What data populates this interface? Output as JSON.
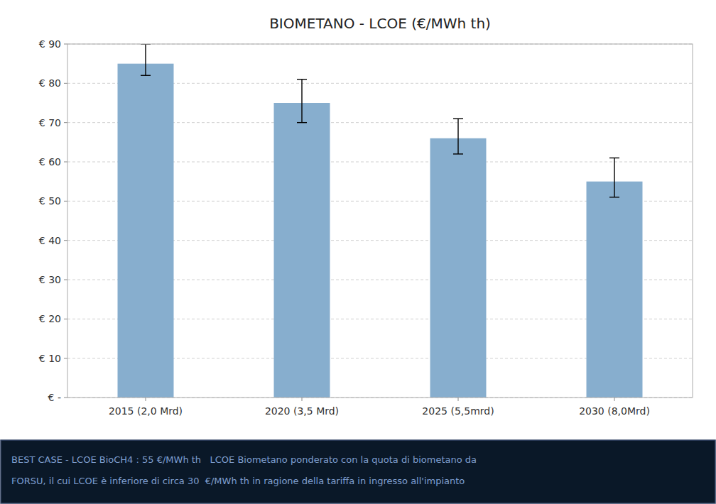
{
  "chart_data": {
    "type": "bar",
    "title": "BIOMETANO - LCOE (€/MWh th)",
    "categories": [
      "2015 (2,0 Mrd)",
      "2020 (3,5 Mrd)",
      "2025 (5,5mrd)",
      "2030 (8,0Mrd)"
    ],
    "values": [
      85,
      75,
      66,
      55
    ],
    "errors_upper": [
      5,
      6,
      5,
      6
    ],
    "errors_lower": [
      3,
      5,
      4,
      4
    ],
    "color": "#87AECE",
    "ylim": [
      0,
      90
    ],
    "yticks": [
      {
        "value": 0,
        "label": "€ -"
      },
      {
        "value": 10,
        "label": "€ 10"
      },
      {
        "value": 20,
        "label": "€ 20"
      },
      {
        "value": 30,
        "label": "€ 30"
      },
      {
        "value": 40,
        "label": "€ 40"
      },
      {
        "value": 50,
        "label": "€ 50"
      },
      {
        "value": 60,
        "label": "€ 60"
      },
      {
        "value": 70,
        "label": "€ 70"
      },
      {
        "value": 80,
        "label": "€ 80"
      },
      {
        "value": 90,
        "label": "€ 90"
      }
    ],
    "grid": true,
    "annotations": [
      "BEST CASE - LCOE BioCH4 : 55 €/MWh th   LCOE Biometano ponderato con la quota di biometano da",
      "FORSU, il cui LCOE è inferiore di circa 30  €/MWh th in ragione della tariffa in ingresso all'impianto"
    ]
  }
}
